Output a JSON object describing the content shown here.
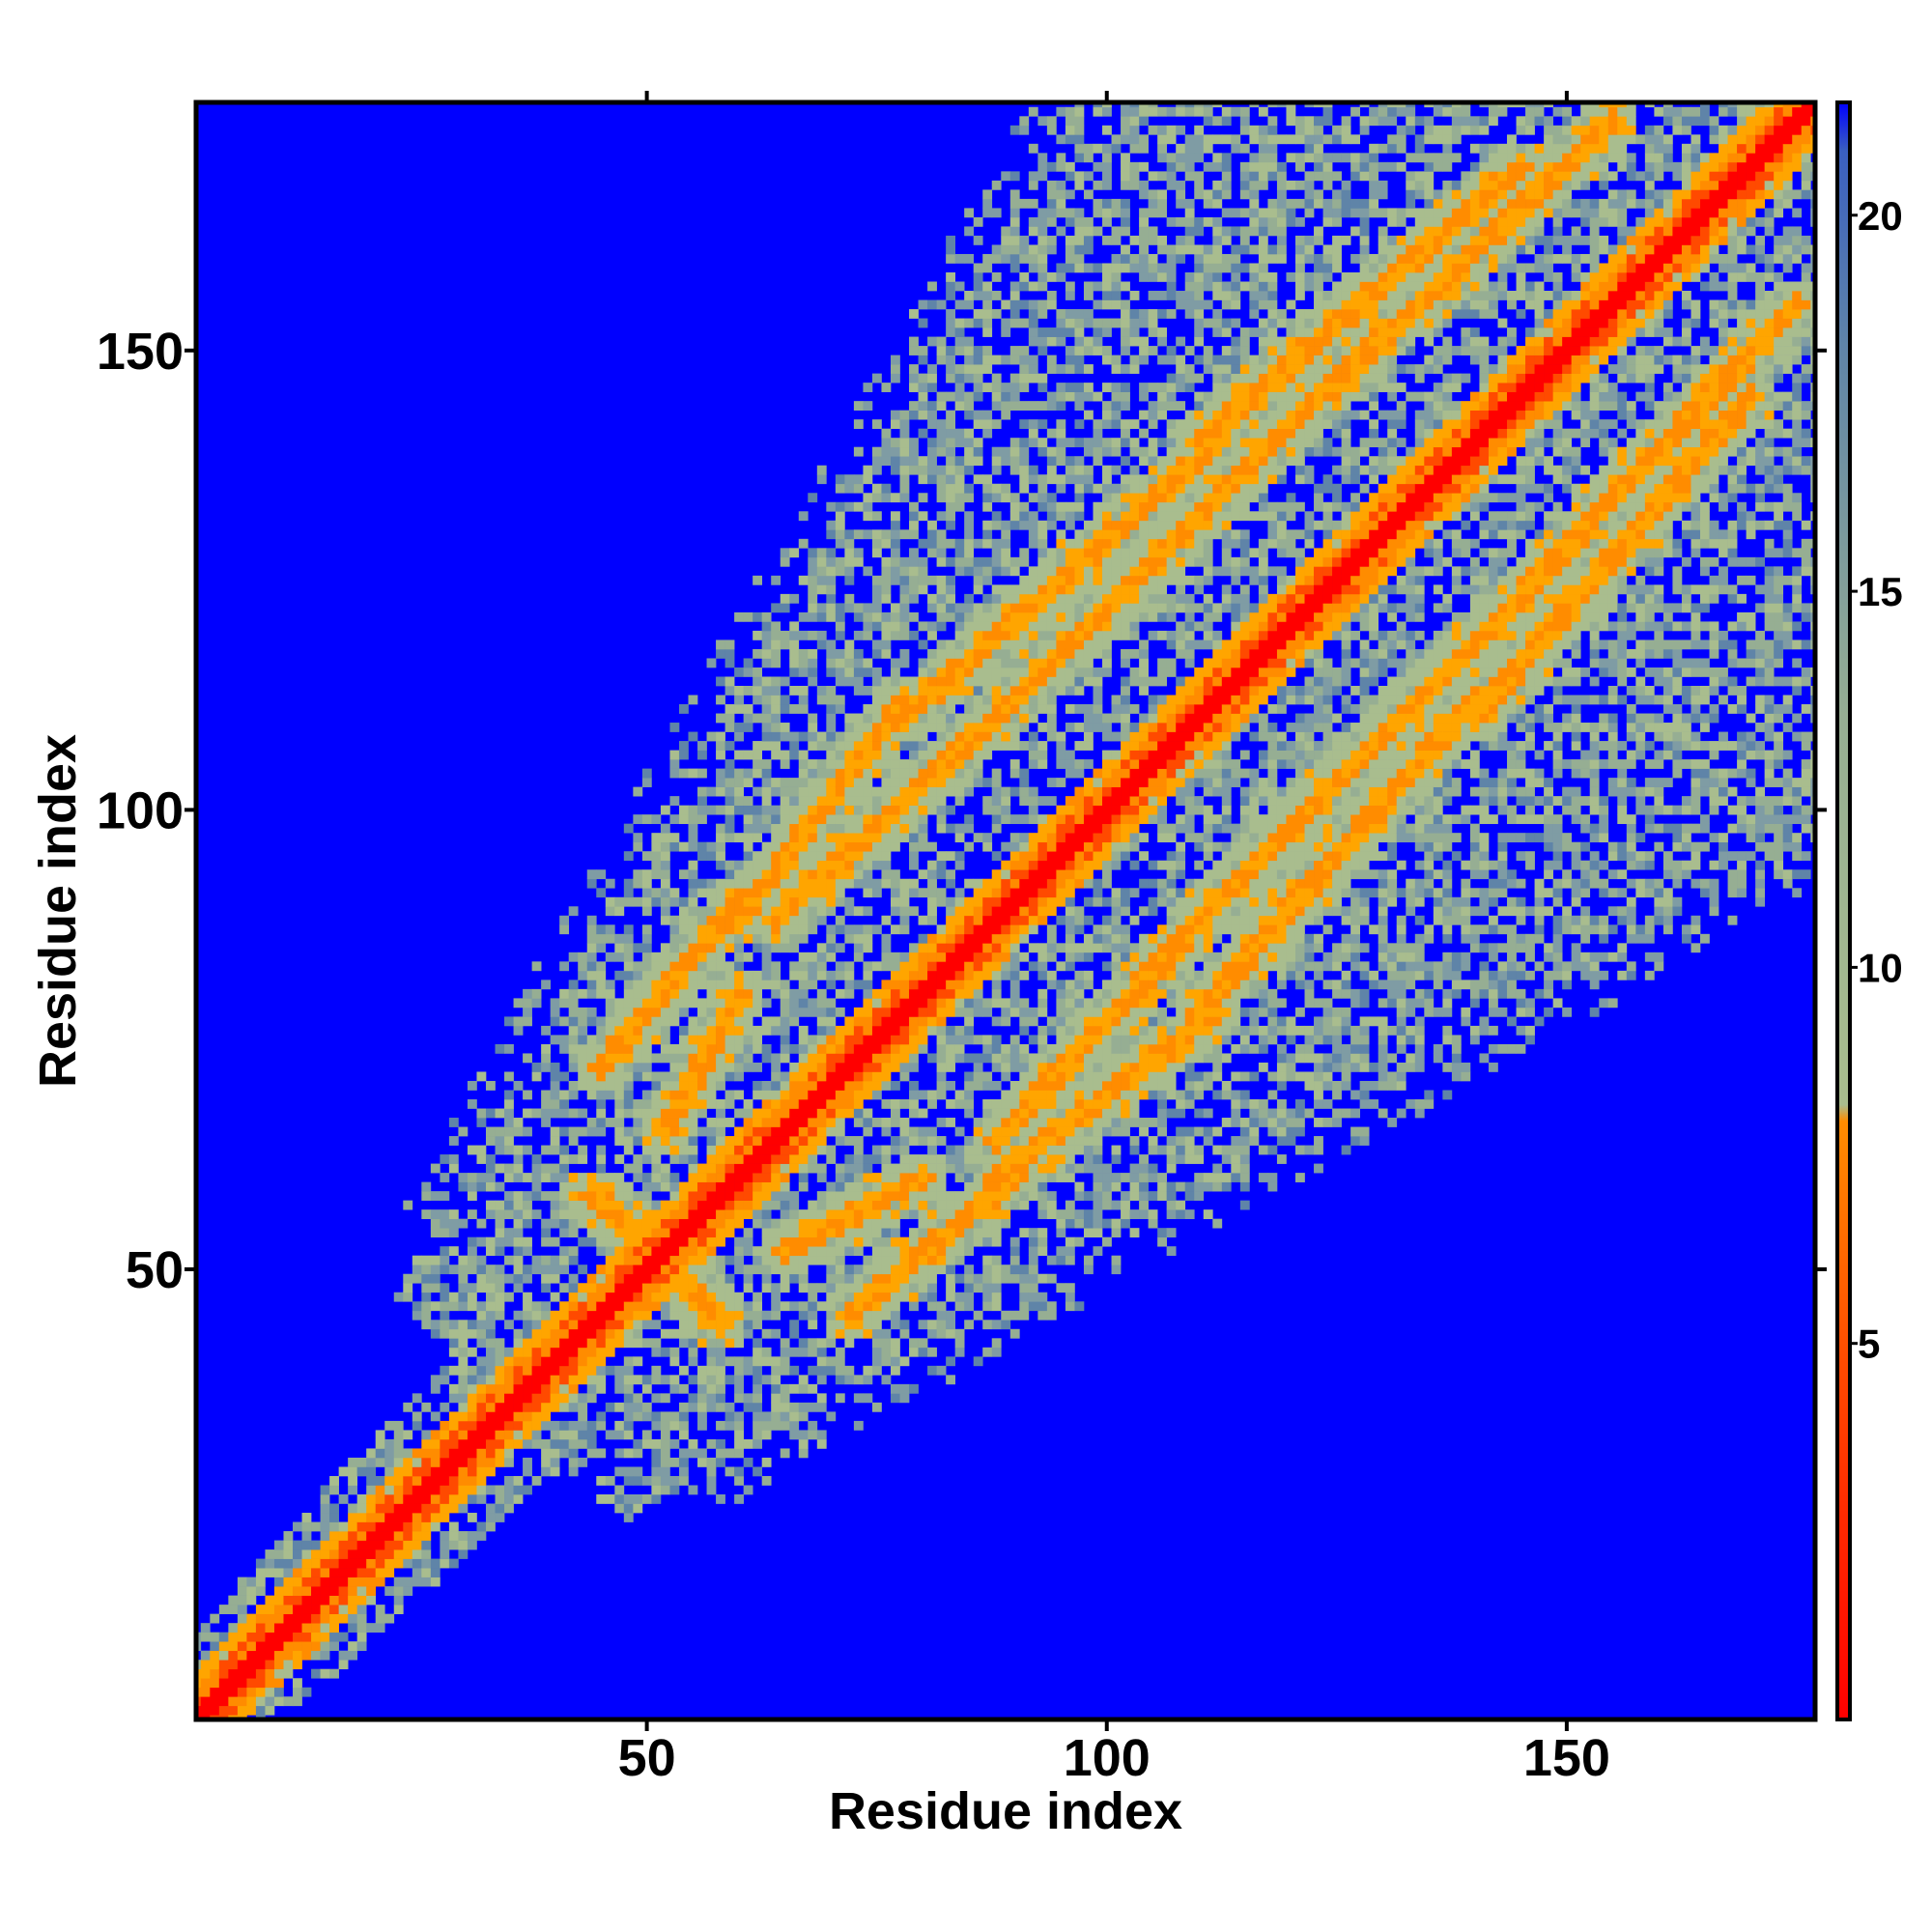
{
  "chart_data": {
    "type": "heatmap",
    "title": "",
    "xlabel": "Residue index",
    "ylabel": "Residue index",
    "xlim": [
      1,
      177
    ],
    "ylim": [
      1,
      177
    ],
    "xticks": [
      50,
      100,
      150
    ],
    "yticks": [
      50,
      100,
      150
    ],
    "colorbar": {
      "range": [
        0,
        21.5
      ],
      "ticks": [
        5,
        10,
        15,
        20
      ],
      "colors": [
        "#ff0000",
        "#ff8c00",
        "#a9bd8e",
        "#5f84a8",
        "#0000ff"
      ]
    },
    "matrix_size": 177,
    "description_of_values": "distance map; values near 0 on the diagonal, saturated (>=21) far from it",
    "secondary_bands": [
      {
        "x": [
          45,
          77
        ],
        "y": [
          72,
          110
        ],
        "note": "upper parallel band"
      },
      {
        "x": [
          80,
          140
        ],
        "y": [
          110,
          168
        ],
        "note": "upper parallel band"
      },
      {
        "x": [
          65,
          80
        ],
        "y": [
          52,
          60
        ],
        "note": "lower band"
      },
      {
        "x": [
          90,
          175
        ],
        "y": [
          64,
          155
        ],
        "note": "lower parallel band"
      },
      {
        "x": [
          45,
          58
        ],
        "y": [
          45,
          58
        ],
        "note": "crossing near 50"
      }
    ]
  }
}
